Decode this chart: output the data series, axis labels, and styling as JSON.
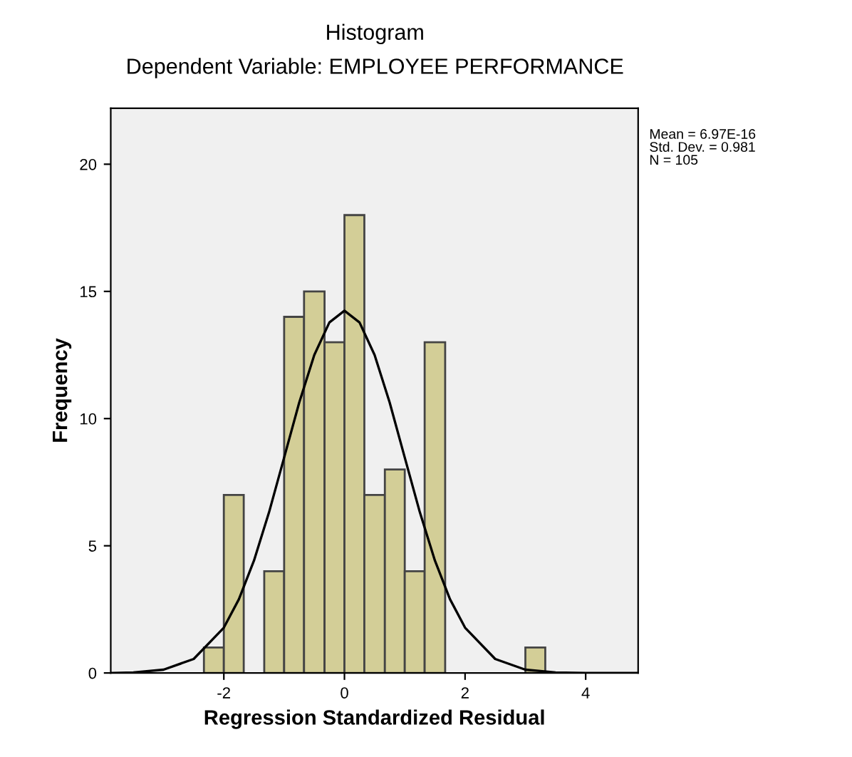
{
  "chart_data": {
    "type": "histogram",
    "title": "Histogram",
    "subtitle": "Dependent Variable: EMPLOYEE PERFORMANCE",
    "xlabel": "Regression Standardized Residual",
    "ylabel": "Frequency",
    "annotations": [
      "Mean = 6.97E-16\nStd. Dev. = 0.981\nN = 105"
    ],
    "series": [
      {
        "color": "#d3ce97",
        "bins": [
          -2.33,
          -2,
          -1.67,
          -1.33,
          -1,
          -0.67,
          -0.33,
          0,
          0.33,
          0.67,
          1,
          1.33,
          1.67,
          3,
          3.33
        ],
        "values": [
          1,
          7,
          0,
          4,
          14,
          15,
          13,
          18,
          7,
          8,
          4,
          13,
          0,
          1
        ]
      },
      {
        "type": "line",
        "color": "#000000",
        "x": [
          -3.85,
          -3.5,
          -3,
          -2.5,
          -2,
          -1.75,
          -1.5,
          -1.25,
          -1,
          -0.75,
          -0.5,
          -0.25,
          0,
          0.25,
          0.5,
          0.75,
          1,
          1.25,
          1.5,
          1.75,
          2,
          2.5,
          3,
          3.5,
          4,
          4.85
        ],
        "values": [
          0,
          0.02,
          0.13,
          0.55,
          1.78,
          2.9,
          4.42,
          6.32,
          8.47,
          10.63,
          12.5,
          13.78,
          14.24,
          13.78,
          12.5,
          10.63,
          8.47,
          6.32,
          4.42,
          2.9,
          1.78,
          0.55,
          0.13,
          0.02,
          0,
          0
        ]
      }
    ],
    "xlim": [
      -3.875,
      4.87
    ],
    "ylim": [
      0,
      22.2
    ],
    "xticks": [
      -2,
      0,
      2,
      4
    ],
    "yticks": [
      0,
      5,
      10,
      15,
      20
    ],
    "grid": false,
    "legend": false
  }
}
